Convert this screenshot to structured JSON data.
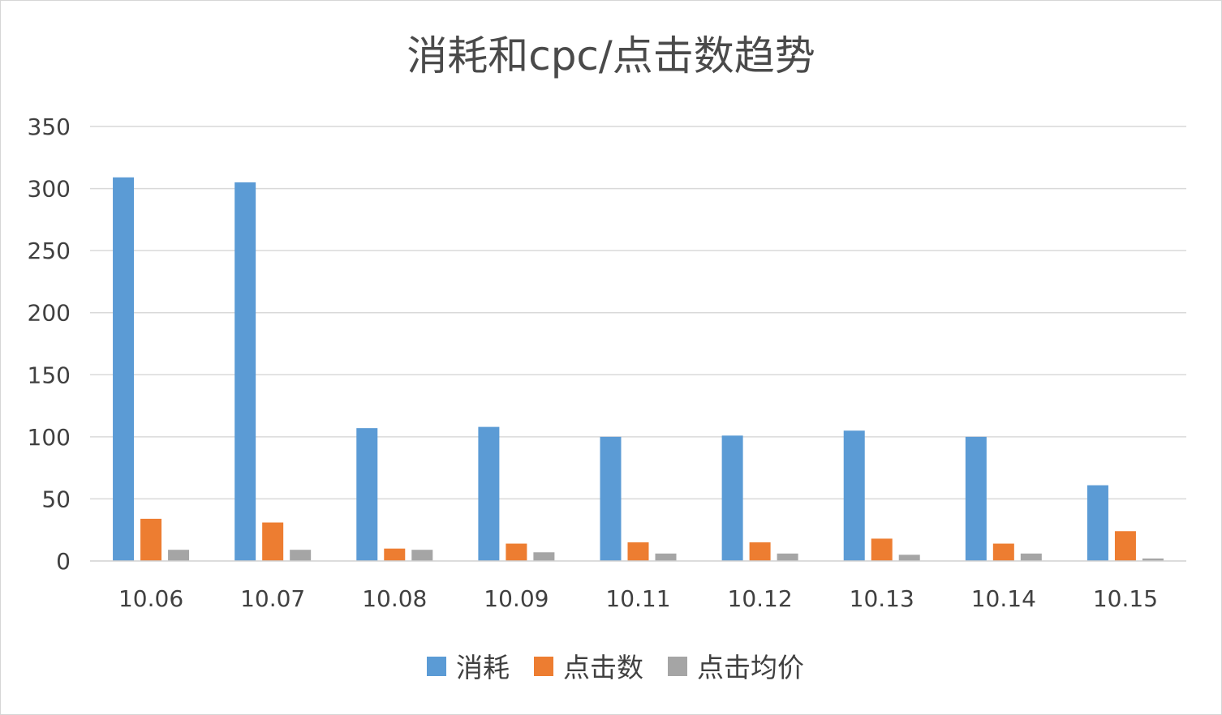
{
  "chart_data": {
    "type": "bar",
    "title": "消耗和cpc/点击数趋势",
    "xlabel": "",
    "ylabel": "",
    "categories": [
      "10.06",
      "10.07",
      "10.08",
      "10.09",
      "10.11",
      "10.12",
      "10.13",
      "10.14",
      "10.15"
    ],
    "series": [
      {
        "name": "消耗",
        "color": "#5b9bd5",
        "values": [
          309,
          305,
          107,
          108,
          100,
          101,
          105,
          100,
          61
        ]
      },
      {
        "name": "点击数",
        "color": "#ed7d31",
        "values": [
          34,
          31,
          10,
          14,
          15,
          15,
          18,
          14,
          24
        ]
      },
      {
        "name": "点击均价",
        "color": "#a5a5a5",
        "values": [
          9,
          9,
          9,
          7,
          6,
          6,
          5,
          6,
          2
        ]
      }
    ],
    "ylim": [
      0,
      350
    ],
    "yticks": [
      0,
      50,
      100,
      150,
      200,
      250,
      300,
      350
    ],
    "grid": true,
    "legend_position": "bottom"
  }
}
